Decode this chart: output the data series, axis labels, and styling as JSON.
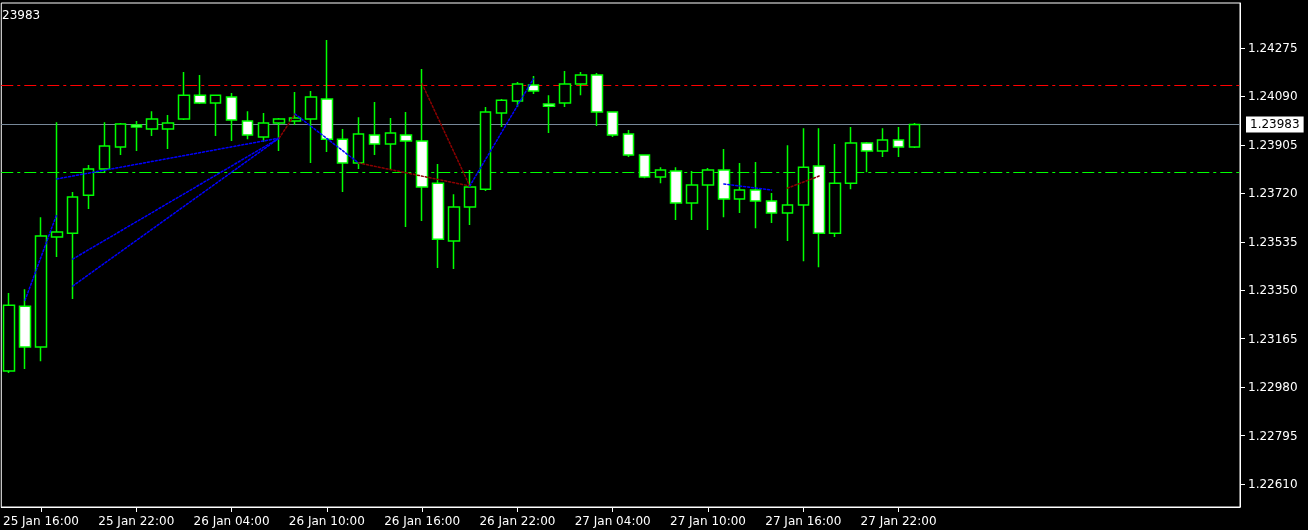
{
  "chart_data": {
    "type": "candlestick",
    "annotations": [
      "23983"
    ],
    "categories": [
      null,
      null,
      "25 Jan 16:00",
      null,
      null,
      null,
      null,
      null,
      "25 Jan 22:00",
      null,
      null,
      null,
      null,
      null,
      "26 Jan 04:00",
      null,
      null,
      null,
      null,
      null,
      "26 Jan 10:00",
      null,
      null,
      null,
      null,
      null,
      "26 Jan 16:00",
      null,
      null,
      null,
      null,
      null,
      "26 Jan 22:00",
      null,
      null,
      null,
      null,
      null,
      "27 Jan 04:00",
      null,
      null,
      null,
      null,
      null,
      "27 Jan 10:00",
      null,
      null,
      null,
      null,
      null,
      "27 Jan 16:00",
      null,
      null,
      null,
      null,
      null,
      "27 Jan 22:00",
      null,
      null,
      null,
      null,
      null,
      null,
      null,
      null,
      null,
      null,
      null,
      null,
      null,
      null,
      null,
      null,
      null,
      null,
      null,
      null,
      null
    ],
    "ylim": [
      1.22522,
      1.24447
    ],
    "yticks": [
      {
        "value": 1.2261,
        "label": "1.22610"
      },
      1.22795,
      {
        "value": 1.2298,
        "label": "1.22980"
      },
      1.23165,
      {
        "value": 1.2335,
        "label": "1.23350"
      },
      1.23535,
      {
        "value": 1.2372,
        "label": "1.23720"
      },
      1.23905,
      {
        "value": 1.2409,
        "label": "1.24090"
      },
      1.24275
    ],
    "grid": false,
    "ref_lines": [
      {
        "axis": "y",
        "value": 1.24134,
        "color": "#ff0000",
        "line_style": "dashed"
      },
      {
        "axis": "y",
        "value": 1.23801,
        "color": "#00ff00",
        "line_style": "dashed"
      },
      {
        "axis": "y",
        "value": 1.23983,
        "label": "1.23983",
        "color": "#778899",
        "line_style": "solid"
      }
    ],
    "series": [
      {
        "color": "#00ff00",
        "ohlc": [
          [
            1.23041,
            1.23339,
            1.23034,
            1.23293
          ],
          [
            1.23289,
            1.23354,
            1.23049,
            1.23133
          ],
          [
            1.23133,
            1.23629,
            1.23079,
            1.23557
          ],
          [
            1.23553,
            1.23992,
            1.23477,
            1.23572
          ],
          [
            1.23568,
            1.23725,
            1.23316,
            1.23706
          ],
          [
            1.23713,
            1.23828,
            1.2366,
            1.23813
          ],
          [
            1.23813,
            1.23992,
            1.23798,
            1.23901
          ],
          [
            1.23897,
            1.23989,
            1.23866,
            1.23985
          ],
          [
            1.23981,
            1.23996,
            1.23882,
            1.23973
          ],
          [
            1.23966,
            1.24034,
            1.23939,
            1.24004
          ],
          [
            1.23966,
            1.24019,
            1.23889,
            1.23989
          ],
          [
            1.24004,
            1.24183,
            1.24,
            1.24095
          ],
          [
            1.24095,
            1.24172,
            1.24061,
            1.24065
          ],
          [
            1.24065,
            1.24095,
            1.23939,
            1.24095
          ],
          [
            1.24088,
            1.24103,
            1.2392,
            1.24
          ],
          [
            1.23996,
            1.24034,
            1.23927,
            1.23943
          ],
          [
            1.23935,
            1.24027,
            1.23916,
            1.23989
          ],
          [
            1.23989,
            1.24008,
            1.23882,
            1.24004
          ],
          [
            1.23996,
            1.24107,
            1.23981,
            1.24008
          ],
          [
            1.24004,
            1.24111,
            1.23836,
            1.24088
          ],
          [
            1.2408,
            1.24306,
            1.23878,
            1.23927
          ],
          [
            1.23927,
            1.23966,
            1.23725,
            1.23836
          ],
          [
            1.23836,
            1.24011,
            1.23813,
            1.23947
          ],
          [
            1.23943,
            1.24069,
            1.23866,
            1.23908
          ],
          [
            1.23908,
            1.24008,
            1.23813,
            1.2395
          ],
          [
            1.23943,
            1.24031,
            1.23591,
            1.2392
          ],
          [
            1.2392,
            1.24195,
            1.23614,
            1.23744
          ],
          [
            1.23759,
            1.23832,
            1.23435,
            1.23545
          ],
          [
            1.23538,
            1.23717,
            1.23431,
            1.23668
          ],
          [
            1.23668,
            1.23809,
            1.23599,
            1.23744
          ],
          [
            1.23736,
            1.2405,
            1.23729,
            1.24031
          ],
          [
            1.24027,
            1.2408,
            1.23973,
            1.24076
          ],
          [
            1.24073,
            1.24145,
            1.2405,
            1.24138
          ],
          [
            1.24134,
            1.24168,
            1.24099,
            1.24111
          ],
          [
            1.24061,
            1.24095,
            1.2395,
            1.24053
          ],
          [
            1.24065,
            1.24187,
            1.2405,
            1.24138
          ],
          [
            1.24138,
            1.24183,
            1.24095,
            1.24172
          ],
          [
            1.24172,
            1.2418,
            1.23977,
            1.24031
          ],
          [
            1.24031,
            1.24034,
            1.23935,
            1.23943
          ],
          [
            1.23947,
            1.23962,
            1.23859,
            1.23866
          ],
          [
            1.23866,
            1.23866,
            1.23778,
            1.23782
          ],
          [
            1.23782,
            1.2382,
            1.23759,
            1.23809
          ],
          [
            1.23805,
            1.2382,
            1.23618,
            1.23683
          ],
          [
            1.23683,
            1.23805,
            1.23618,
            1.23752
          ],
          [
            1.23752,
            1.23817,
            1.2358,
            1.23809
          ],
          [
            1.23809,
            1.23889,
            1.23629,
            1.23698
          ],
          [
            1.23698,
            1.23836,
            1.23645,
            1.23733
          ],
          [
            1.23733,
            1.2384,
            1.23587,
            1.23691
          ],
          [
            1.23691,
            1.23721,
            1.23607,
            1.23645
          ],
          [
            1.23645,
            1.23904,
            1.23538,
            1.23675
          ],
          [
            1.23675,
            1.23969,
            1.23461,
            1.2382
          ],
          [
            1.23824,
            1.23969,
            1.23438,
            1.23568
          ],
          [
            1.23568,
            1.23908,
            1.23553,
            1.23759
          ],
          [
            1.23759,
            1.23973,
            1.23736,
            1.23912
          ],
          [
            1.23912,
            1.23916,
            1.23801,
            1.23882
          ],
          [
            1.23882,
            1.23969,
            1.23859,
            1.23924
          ],
          [
            1.23924,
            1.23973,
            1.23859,
            1.23897
          ],
          [
            1.23897,
            1.23989,
            1.23893,
            1.23983
          ],
          null,
          null,
          null,
          null,
          null,
          null,
          null,
          null,
          null,
          null,
          null,
          null,
          null,
          null,
          null,
          null,
          null,
          null,
          null,
          null
        ]
      },
      {
        "type": "line",
        "color": "#0000ff",
        "line_style": "dotted",
        "values": [
          null,
          1.23312,
          null,
          1.23641,
          null,
          null,
          null,
          null,
          null,
          null,
          null,
          null,
          null,
          null,
          null,
          null,
          null,
          null,
          null,
          null,
          null,
          null,
          null,
          null,
          null,
          null,
          null,
          null,
          null,
          null,
          null,
          null,
          null,
          null,
          null,
          null,
          null,
          null,
          null,
          null,
          null,
          null,
          null,
          null,
          null,
          null,
          null,
          null,
          null,
          null,
          null,
          null,
          null,
          null,
          null,
          null,
          null,
          null,
          null,
          null,
          null,
          null,
          null,
          null,
          null,
          null,
          null,
          null,
          null,
          null,
          null,
          null,
          null,
          null,
          null,
          null,
          null,
          null
        ]
      },
      {
        "type": "line",
        "color": "#0000ff",
        "line_style": "dotted",
        "values": [
          null,
          null,
          null,
          1.23775,
          null,
          null,
          null,
          null,
          null,
          null,
          null,
          null,
          null,
          null,
          null,
          null,
          null,
          1.23931,
          null,
          null,
          null,
          null,
          null,
          null,
          null,
          null,
          null,
          null,
          null,
          null,
          null,
          null,
          null,
          null,
          null,
          null,
          null,
          null,
          null,
          null,
          null,
          null,
          null,
          null,
          null,
          null,
          null,
          null,
          null,
          null,
          null,
          null,
          null,
          null,
          null,
          null,
          null,
          null,
          null,
          null,
          null,
          null,
          null,
          null,
          null,
          null,
          null,
          null,
          null,
          null,
          null,
          null,
          null,
          null,
          null,
          null,
          null,
          null
        ]
      },
      {
        "type": "line",
        "color": "#0000ff",
        "line_style": "dotted",
        "values": [
          null,
          null,
          null,
          null,
          1.23469,
          null,
          null,
          null,
          null,
          null,
          null,
          null,
          null,
          null,
          null,
          null,
          null,
          1.23931,
          null,
          null,
          null,
          null,
          null,
          null,
          null,
          null,
          null,
          null,
          null,
          null,
          null,
          null,
          null,
          null,
          null,
          null,
          null,
          null,
          null,
          null,
          null,
          null,
          null,
          null,
          null,
          null,
          null,
          null,
          null,
          null,
          null,
          null,
          null,
          null,
          null,
          null,
          null,
          null,
          null,
          null,
          null,
          null,
          null,
          null,
          null,
          null,
          null,
          null,
          null,
          null,
          null,
          null,
          null,
          null,
          null,
          null,
          null,
          null
        ]
      },
      {
        "type": "line",
        "color": "#0000ff",
        "line_style": "dotted",
        "values": [
          null,
          null,
          null,
          null,
          1.23366,
          null,
          null,
          null,
          null,
          null,
          null,
          null,
          null,
          null,
          null,
          null,
          null,
          1.23931,
          null,
          null,
          null,
          null,
          null,
          null,
          null,
          null,
          null,
          null,
          null,
          null,
          null,
          null,
          null,
          null,
          null,
          null,
          null,
          null,
          null,
          null,
          null,
          null,
          null,
          null,
          null,
          null,
          null,
          null,
          null,
          null,
          null,
          null,
          null,
          null,
          null,
          null,
          null,
          null,
          null,
          null,
          null,
          null,
          null,
          null,
          null,
          null,
          null,
          null,
          null,
          null,
          null,
          null,
          null,
          null,
          null,
          null,
          null,
          null
        ]
      },
      {
        "type": "line",
        "color": "#8b0000",
        "line_style": "dotted",
        "values": [
          null,
          null,
          null,
          null,
          null,
          null,
          null,
          null,
          null,
          null,
          null,
          null,
          null,
          null,
          null,
          null,
          null,
          1.23931,
          1.24023,
          null,
          null,
          null,
          null,
          null,
          null,
          null,
          null,
          null,
          null,
          null,
          null,
          null,
          null,
          null,
          null,
          null,
          null,
          null,
          null,
          null,
          null,
          null,
          null,
          null,
          null,
          null,
          null,
          null,
          null,
          null,
          null,
          null,
          null,
          null,
          null,
          null,
          null,
          null,
          null,
          null,
          null,
          null,
          null,
          null,
          null,
          null,
          null,
          null,
          null,
          null,
          null,
          null,
          null,
          null,
          null,
          null,
          null,
          null
        ]
      },
      {
        "type": "line",
        "color": "#0000ff",
        "line_style": "dotted",
        "values": [
          null,
          null,
          null,
          null,
          null,
          null,
          null,
          null,
          null,
          null,
          null,
          null,
          null,
          null,
          null,
          null,
          null,
          null,
          1.24023,
          null,
          null,
          null,
          1.23836,
          null,
          null,
          null,
          null,
          null,
          null,
          null,
          null,
          null,
          null,
          null,
          null,
          null,
          null,
          null,
          null,
          null,
          null,
          null,
          null,
          null,
          null,
          null,
          null,
          null,
          null,
          null,
          null,
          null,
          null,
          null,
          null,
          null,
          null,
          null,
          null,
          null,
          null,
          null,
          null,
          null,
          null,
          null,
          null,
          null,
          null,
          null,
          null,
          null,
          null,
          null,
          null,
          null,
          null,
          null
        ]
      },
      {
        "type": "line",
        "color": "#8b0000",
        "line_style": "dotted",
        "values": [
          null,
          null,
          null,
          null,
          null,
          null,
          null,
          null,
          null,
          null,
          null,
          null,
          null,
          null,
          null,
          null,
          null,
          null,
          null,
          null,
          null,
          null,
          1.23836,
          null,
          null,
          null,
          null,
          null,
          null,
          1.23748,
          null,
          null,
          null,
          null,
          null,
          null,
          null,
          null,
          null,
          null,
          null,
          null,
          null,
          null,
          null,
          null,
          null,
          null,
          null,
          null,
          null,
          null,
          null,
          null,
          null,
          null,
          null,
          null,
          null,
          null,
          null,
          null,
          null,
          null,
          null,
          null,
          null,
          null,
          null,
          null,
          null,
          null,
          null,
          null,
          null,
          null,
          null,
          null
        ]
      },
      {
        "type": "line",
        "color": "#8b0000",
        "line_style": "dotted",
        "values": [
          null,
          null,
          null,
          null,
          null,
          null,
          null,
          null,
          null,
          null,
          null,
          null,
          null,
          null,
          null,
          null,
          null,
          null,
          null,
          null,
          null,
          null,
          null,
          null,
          null,
          null,
          1.24138,
          null,
          null,
          1.23748,
          null,
          null,
          null,
          null,
          null,
          null,
          null,
          null,
          null,
          null,
          null,
          null,
          null,
          null,
          null,
          null,
          null,
          null,
          null,
          null,
          null,
          null,
          null,
          null,
          null,
          null,
          null,
          null,
          null,
          null,
          null,
          null,
          null,
          null,
          null,
          null,
          null,
          null,
          null,
          null,
          null,
          null,
          null,
          null,
          null,
          null,
          null,
          null
        ]
      },
      {
        "type": "line",
        "color": "#0000ff",
        "line_style": "dotted",
        "values": [
          null,
          null,
          null,
          null,
          null,
          null,
          null,
          null,
          null,
          null,
          null,
          null,
          null,
          null,
          null,
          null,
          null,
          null,
          null,
          null,
          null,
          null,
          null,
          null,
          null,
          null,
          null,
          null,
          null,
          1.23748,
          null,
          null,
          null,
          1.24157,
          null,
          null,
          null,
          null,
          null,
          null,
          null,
          null,
          null,
          null,
          null,
          null,
          null,
          null,
          null,
          null,
          null,
          null,
          null,
          null,
          null,
          null,
          null,
          null,
          null,
          null,
          null,
          null,
          null,
          null,
          null,
          null,
          null,
          null,
          null,
          null,
          null,
          null,
          null,
          null,
          null,
          null,
          null,
          null
        ]
      },
      {
        "type": "line",
        "color": "#0000ff",
        "line_style": "dotted",
        "values": [
          null,
          null,
          null,
          null,
          null,
          null,
          null,
          null,
          null,
          null,
          null,
          null,
          null,
          null,
          null,
          null,
          null,
          null,
          null,
          null,
          null,
          null,
          null,
          null,
          null,
          null,
          null,
          null,
          null,
          null,
          null,
          null,
          null,
          null,
          null,
          null,
          null,
          null,
          null,
          null,
          null,
          null,
          null,
          null,
          null,
          1.23756,
          null,
          null,
          1.23733,
          null,
          null,
          null,
          null,
          null,
          null,
          null,
          null,
          null,
          null,
          null,
          null,
          null,
          null,
          null,
          null,
          null,
          null,
          null,
          null,
          null,
          null,
          null,
          null,
          null,
          null,
          null,
          null,
          null
        ]
      },
      {
        "type": "line",
        "color": "#8b0000",
        "line_style": "dotted",
        "values": [
          null,
          null,
          null,
          null,
          null,
          null,
          null,
          null,
          null,
          null,
          null,
          null,
          null,
          null,
          null,
          null,
          null,
          null,
          null,
          null,
          null,
          null,
          null,
          null,
          null,
          null,
          null,
          null,
          null,
          null,
          null,
          null,
          null,
          null,
          null,
          null,
          null,
          null,
          null,
          null,
          null,
          null,
          null,
          null,
          null,
          null,
          null,
          null,
          null,
          1.2374,
          null,
          1.23786,
          null,
          null,
          null,
          null,
          null,
          null,
          null,
          null,
          null,
          null,
          null,
          null,
          null,
          null,
          null,
          null,
          null,
          null,
          null,
          null,
          null,
          null,
          null,
          null,
          null,
          null
        ]
      }
    ]
  }
}
